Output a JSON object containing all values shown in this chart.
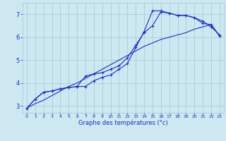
{
  "title": "",
  "xlabel": "Graphe des températures (°c)",
  "ylabel": "",
  "bg_color": "#cde8f0",
  "line_color": "#1a2ecc",
  "grid_color": "#a0c8d8",
  "xlim": [
    -0.5,
    23.5
  ],
  "ylim": [
    2.7,
    7.5
  ],
  "yticks": [
    3,
    4,
    5,
    6,
    7
  ],
  "xticks": [
    0,
    1,
    2,
    3,
    4,
    5,
    6,
    7,
    8,
    9,
    10,
    11,
    12,
    13,
    14,
    15,
    16,
    17,
    18,
    19,
    20,
    21,
    22,
    23
  ],
  "curve1_x": [
    0,
    1,
    2,
    3,
    4,
    5,
    6,
    7,
    8,
    9,
    10,
    11,
    12,
    13,
    14,
    15,
    16,
    17,
    18,
    19,
    20,
    21,
    22,
    23
  ],
  "curve1_y": [
    2.9,
    3.3,
    3.6,
    3.65,
    3.75,
    3.8,
    3.85,
    3.85,
    4.1,
    4.25,
    4.35,
    4.6,
    4.85,
    5.55,
    6.25,
    7.15,
    7.15,
    7.05,
    6.95,
    6.95,
    6.85,
    6.6,
    6.55,
    6.05
  ],
  "curve2_x": [
    0,
    1,
    2,
    3,
    4,
    5,
    6,
    7,
    8,
    9,
    10,
    11,
    12,
    13,
    14,
    15,
    16,
    17,
    18,
    19,
    20,
    21,
    22,
    23
  ],
  "curve2_y": [
    2.9,
    3.3,
    3.6,
    3.65,
    3.75,
    3.8,
    3.85,
    4.3,
    4.4,
    4.45,
    4.6,
    4.75,
    5.1,
    5.65,
    6.2,
    6.5,
    7.1,
    7.05,
    6.95,
    6.95,
    6.85,
    6.7,
    6.45,
    6.1
  ],
  "curve3_x": [
    0,
    1,
    2,
    3,
    4,
    5,
    6,
    7,
    8,
    9,
    10,
    11,
    12,
    13,
    14,
    15,
    16,
    17,
    18,
    19,
    20,
    21,
    22,
    23
  ],
  "curve3_y": [
    2.9,
    3.1,
    3.25,
    3.45,
    3.65,
    3.85,
    4.0,
    4.2,
    4.4,
    4.6,
    4.8,
    5.0,
    5.2,
    5.4,
    5.6,
    5.75,
    5.9,
    6.0,
    6.1,
    6.2,
    6.35,
    6.45,
    6.55,
    6.05
  ],
  "marker": "+",
  "markersize": 3,
  "linewidth": 0.8
}
